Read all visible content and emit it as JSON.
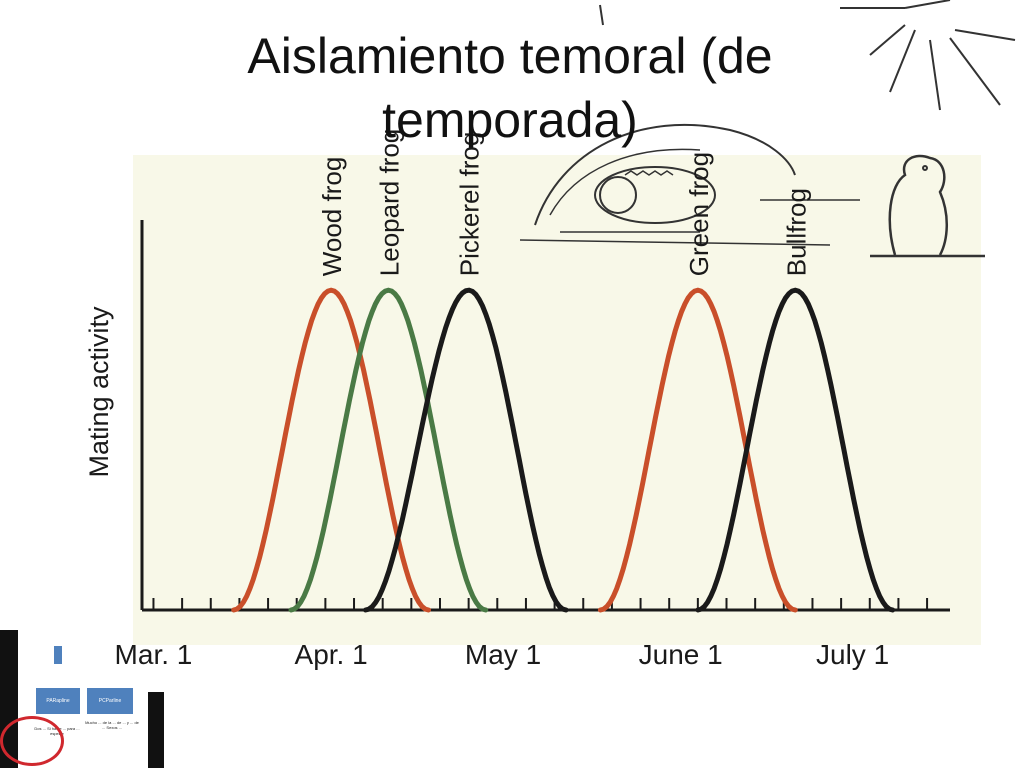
{
  "slide": {
    "title_line1": "Aislamiento temoral (de",
    "title_line2": "temporada)"
  },
  "chart_data": {
    "type": "line",
    "title": "",
    "xlabel": "",
    "ylabel": "Mating activity",
    "x_ticks": [
      "Mar. 1",
      "Apr. 1",
      "May 1",
      "June 1",
      "July 1"
    ],
    "x_unit": "day of season (Mar. 1 = 0)",
    "x_tick_values": [
      0,
      31,
      61,
      92,
      122
    ],
    "xlim": [
      -2,
      139
    ],
    "ylim": [
      0,
      1
    ],
    "background_color": "#f8f8e8",
    "series": [
      {
        "name": "Wood frog",
        "color": "#c94f2a",
        "start": 14,
        "peak": 31,
        "end": 48,
        "peak_value": 0.78
      },
      {
        "name": "Leopard frog",
        "color": "#4a7a45",
        "start": 24,
        "peak": 41,
        "end": 58,
        "peak_value": 0.78
      },
      {
        "name": "Pickerel frog",
        "color": "#1a1a1a",
        "start": 37,
        "peak": 55,
        "end": 72,
        "peak_value": 0.78
      },
      {
        "name": "Green frog",
        "color": "#c94f2a",
        "start": 78,
        "peak": 95,
        "end": 112,
        "peak_value": 0.78
      },
      {
        "name": "Bullfrog",
        "color": "#1a1a1a",
        "start": 95,
        "peak": 112,
        "end": 129,
        "peak_value": 0.78
      }
    ]
  },
  "thumbnail": {
    "box_a": "PARapline",
    "box_b": "PCParline",
    "text_a": "Dos ... Si habie ... para ... especie",
    "text_b": "Mucho ... de la ... de ... y ... de ... Sexos ..."
  }
}
